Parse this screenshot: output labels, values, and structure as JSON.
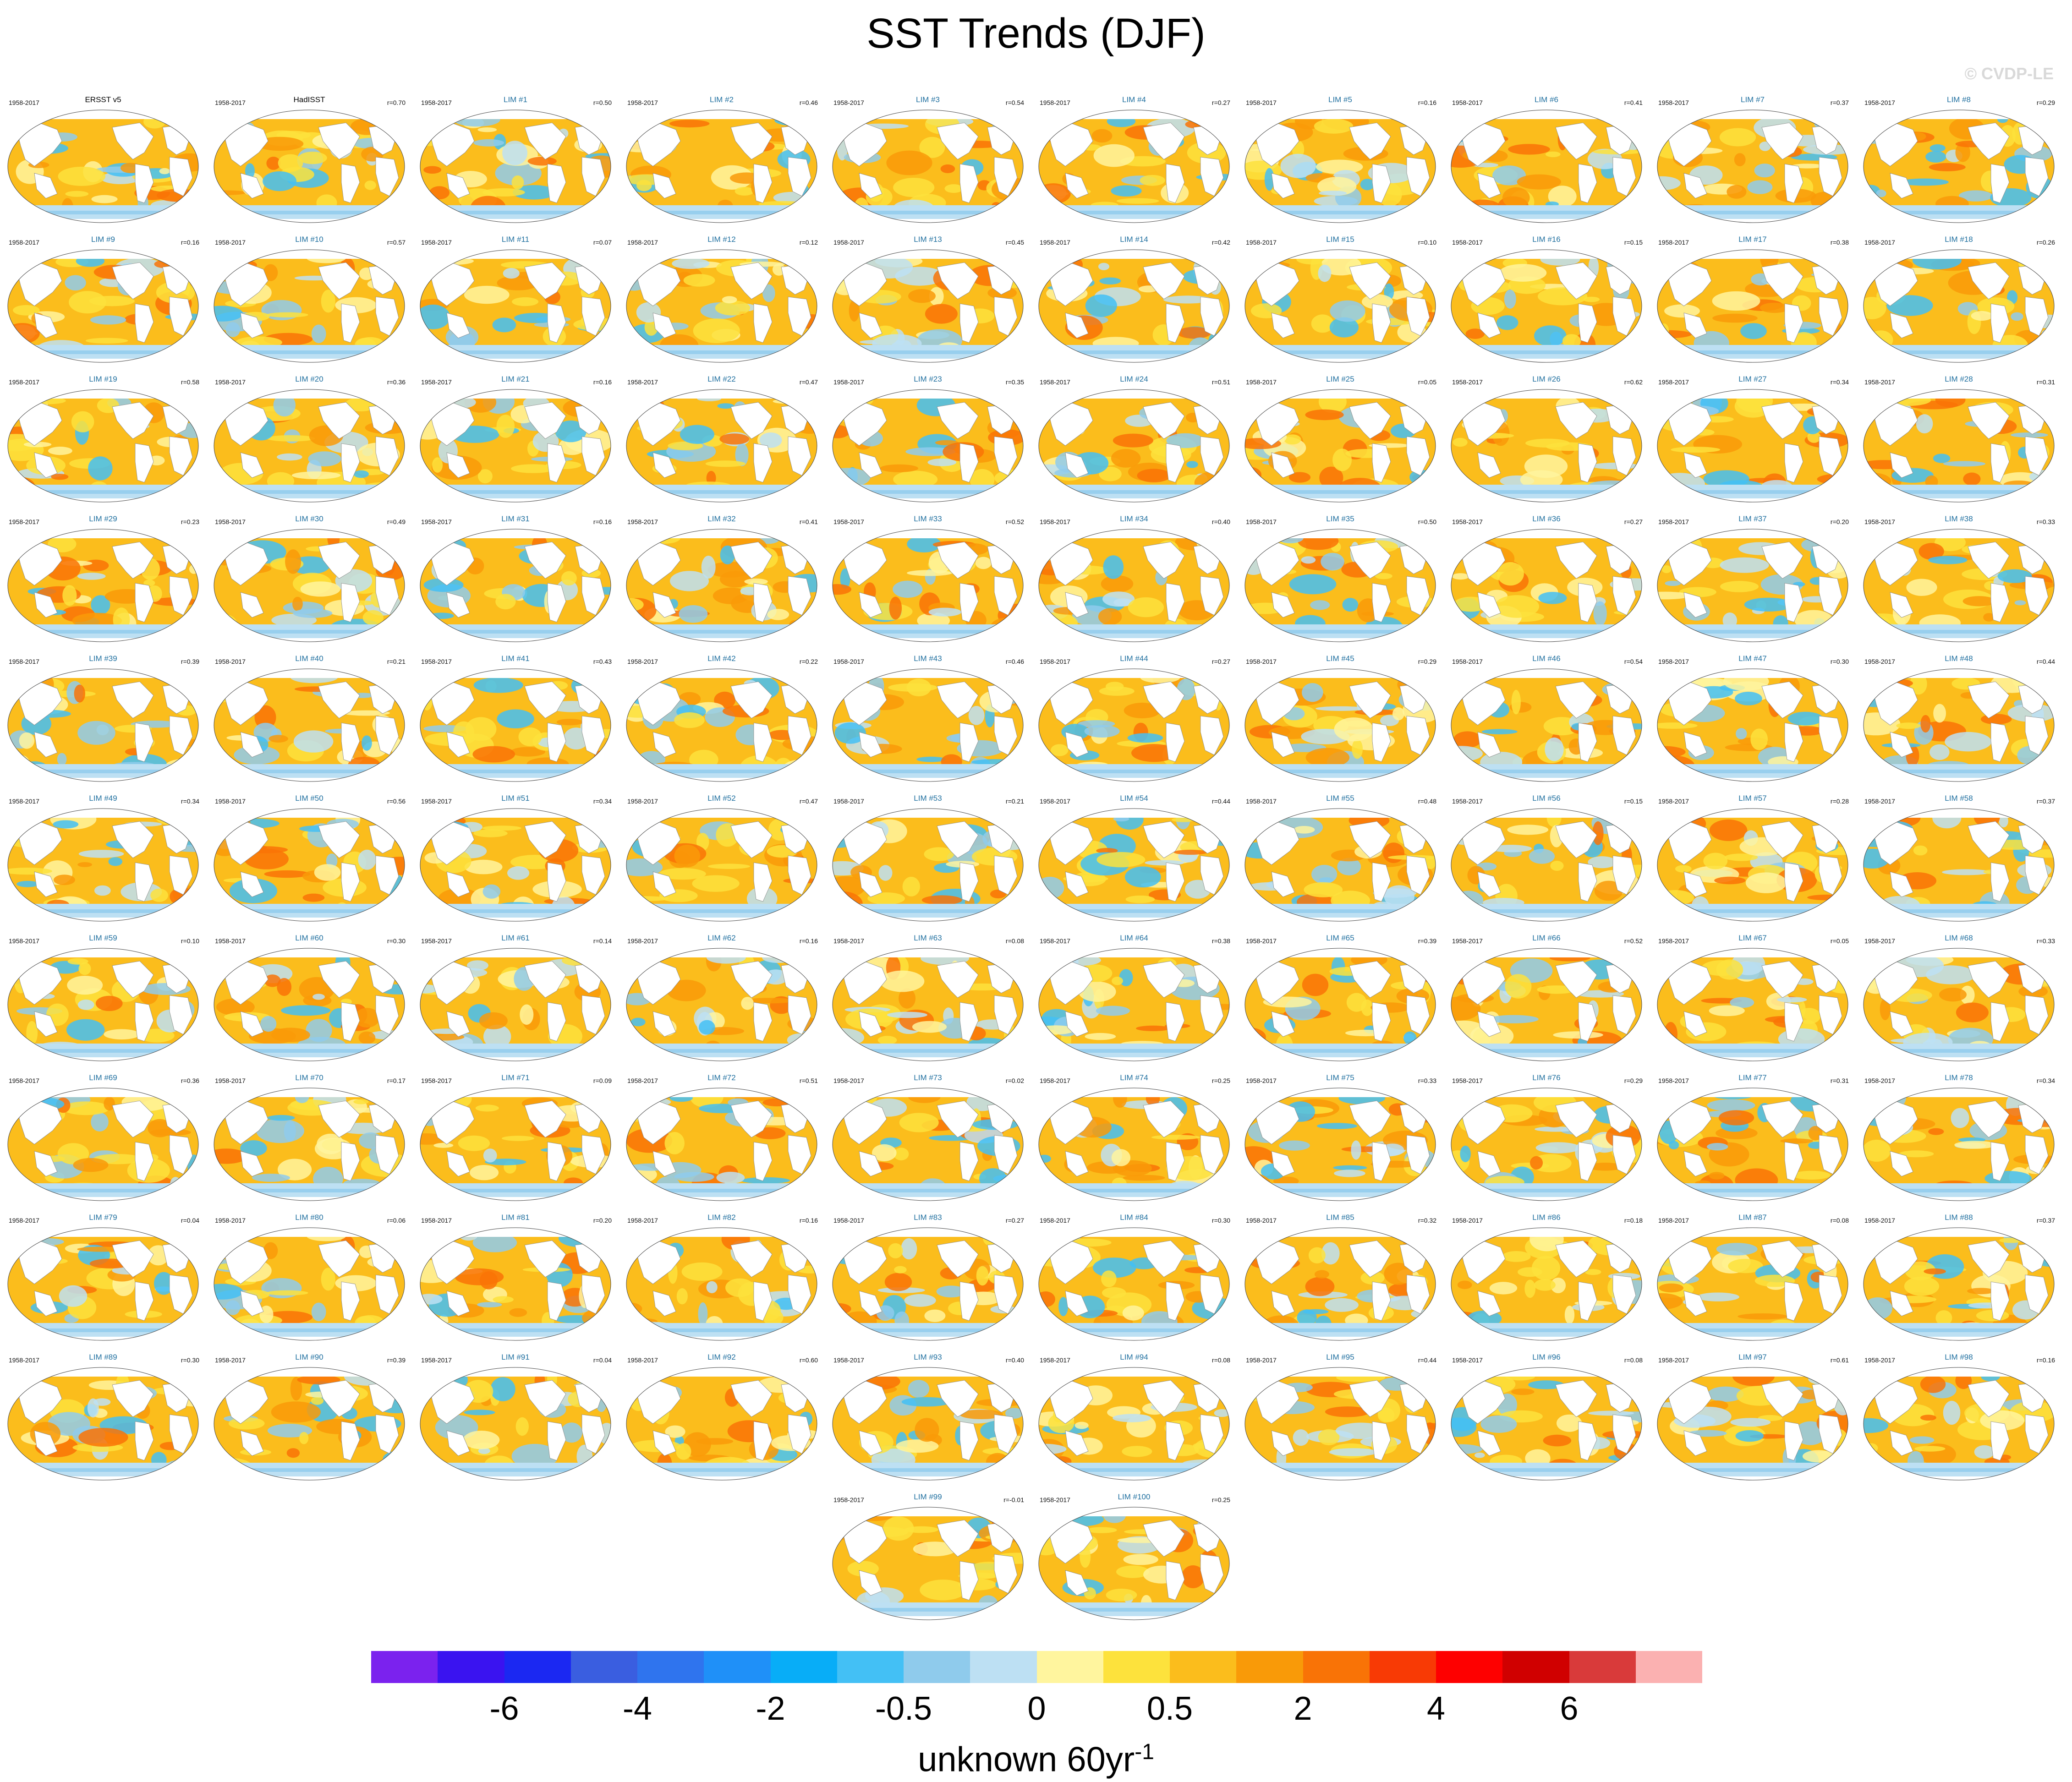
{
  "title": "SST Trends (DJF)",
  "watermark": "© CVDP-LE",
  "period": "1958-2017",
  "panels": [
    {
      "title": "ERSST v5",
      "r": ""
    },
    {
      "title": "HadISST",
      "r": "r=0.70"
    },
    {
      "title": "LIM #1",
      "r": "r=0.50"
    },
    {
      "title": "LIM #2",
      "r": "r=0.46"
    },
    {
      "title": "LIM #3",
      "r": "r=0.54"
    },
    {
      "title": "LIM #4",
      "r": "r=0.27"
    },
    {
      "title": "LIM #5",
      "r": "r=0.16"
    },
    {
      "title": "LIM #6",
      "r": "r=0.41"
    },
    {
      "title": "LIM #7",
      "r": "r=0.37"
    },
    {
      "title": "LIM #8",
      "r": "r=0.29"
    },
    {
      "title": "LIM #9",
      "r": "r=0.16"
    },
    {
      "title": "LIM #10",
      "r": "r=0.57"
    },
    {
      "title": "LIM #11",
      "r": "r=0.07"
    },
    {
      "title": "LIM #12",
      "r": "r=0.12"
    },
    {
      "title": "LIM #13",
      "r": "r=0.45"
    },
    {
      "title": "LIM #14",
      "r": "r=0.42"
    },
    {
      "title": "LIM #15",
      "r": "r=0.10"
    },
    {
      "title": "LIM #16",
      "r": "r=0.15"
    },
    {
      "title": "LIM #17",
      "r": "r=0.38"
    },
    {
      "title": "LIM #18",
      "r": "r=0.26"
    },
    {
      "title": "LIM #19",
      "r": "r=0.58"
    },
    {
      "title": "LIM #20",
      "r": "r=0.36"
    },
    {
      "title": "LIM #21",
      "r": "r=0.16"
    },
    {
      "title": "LIM #22",
      "r": "r=0.47"
    },
    {
      "title": "LIM #23",
      "r": "r=0.35"
    },
    {
      "title": "LIM #24",
      "r": "r=0.51"
    },
    {
      "title": "LIM #25",
      "r": "r=0.05"
    },
    {
      "title": "LIM #26",
      "r": "r=0.62"
    },
    {
      "title": "LIM #27",
      "r": "r=0.34"
    },
    {
      "title": "LIM #28",
      "r": "r=0.31"
    },
    {
      "title": "LIM #29",
      "r": "r=0.23"
    },
    {
      "title": "LIM #30",
      "r": "r=0.49"
    },
    {
      "title": "LIM #31",
      "r": "r=0.16"
    },
    {
      "title": "LIM #32",
      "r": "r=0.41"
    },
    {
      "title": "LIM #33",
      "r": "r=0.52"
    },
    {
      "title": "LIM #34",
      "r": "r=0.40"
    },
    {
      "title": "LIM #35",
      "r": "r=0.50"
    },
    {
      "title": "LIM #36",
      "r": "r=0.27"
    },
    {
      "title": "LIM #37",
      "r": "r=0.20"
    },
    {
      "title": "LIM #38",
      "r": "r=0.33"
    },
    {
      "title": "LIM #39",
      "r": "r=0.39"
    },
    {
      "title": "LIM #40",
      "r": "r=0.21"
    },
    {
      "title": "LIM #41",
      "r": "r=0.43"
    },
    {
      "title": "LIM #42",
      "r": "r=0.22"
    },
    {
      "title": "LIM #43",
      "r": "r=0.46"
    },
    {
      "title": "LIM #44",
      "r": "r=0.27"
    },
    {
      "title": "LIM #45",
      "r": "r=0.29"
    },
    {
      "title": "LIM #46",
      "r": "r=0.54"
    },
    {
      "title": "LIM #47",
      "r": "r=0.30"
    },
    {
      "title": "LIM #48",
      "r": "r=0.44"
    },
    {
      "title": "LIM #49",
      "r": "r=0.34"
    },
    {
      "title": "LIM #50",
      "r": "r=0.56"
    },
    {
      "title": "LIM #51",
      "r": "r=0.34"
    },
    {
      "title": "LIM #52",
      "r": "r=0.47"
    },
    {
      "title": "LIM #53",
      "r": "r=0.21"
    },
    {
      "title": "LIM #54",
      "r": "r=0.44"
    },
    {
      "title": "LIM #55",
      "r": "r=0.48"
    },
    {
      "title": "LIM #56",
      "r": "r=0.15"
    },
    {
      "title": "LIM #57",
      "r": "r=0.28"
    },
    {
      "title": "LIM #58",
      "r": "r=0.37"
    },
    {
      "title": "LIM #59",
      "r": "r=0.10"
    },
    {
      "title": "LIM #60",
      "r": "r=0.30"
    },
    {
      "title": "LIM #61",
      "r": "r=0.14"
    },
    {
      "title": "LIM #62",
      "r": "r=0.16"
    },
    {
      "title": "LIM #63",
      "r": "r=0.08"
    },
    {
      "title": "LIM #64",
      "r": "r=0.38"
    },
    {
      "title": "LIM #65",
      "r": "r=0.39"
    },
    {
      "title": "LIM #66",
      "r": "r=0.52"
    },
    {
      "title": "LIM #67",
      "r": "r=0.05"
    },
    {
      "title": "LIM #68",
      "r": "r=0.33"
    },
    {
      "title": "LIM #69",
      "r": "r=0.36"
    },
    {
      "title": "LIM #70",
      "r": "r=0.17"
    },
    {
      "title": "LIM #71",
      "r": "r=0.09"
    },
    {
      "title": "LIM #72",
      "r": "r=0.51"
    },
    {
      "title": "LIM #73",
      "r": "r=0.02"
    },
    {
      "title": "LIM #74",
      "r": "r=0.25"
    },
    {
      "title": "LIM #75",
      "r": "r=0.33"
    },
    {
      "title": "LIM #76",
      "r": "r=0.29"
    },
    {
      "title": "LIM #77",
      "r": "r=0.31"
    },
    {
      "title": "LIM #78",
      "r": "r=0.34"
    },
    {
      "title": "LIM #79",
      "r": "r=0.04"
    },
    {
      "title": "LIM #80",
      "r": "r=0.06"
    },
    {
      "title": "LIM #81",
      "r": "r=0.20"
    },
    {
      "title": "LIM #82",
      "r": "r=0.16"
    },
    {
      "title": "LIM #83",
      "r": "r=0.27"
    },
    {
      "title": "LIM #84",
      "r": "r=0.30"
    },
    {
      "title": "LIM #85",
      "r": "r=0.32"
    },
    {
      "title": "LIM #86",
      "r": "r=0.18"
    },
    {
      "title": "LIM #87",
      "r": "r=0.08"
    },
    {
      "title": "LIM #88",
      "r": "r=0.37"
    },
    {
      "title": "LIM #89",
      "r": "r=0.30"
    },
    {
      "title": "LIM #90",
      "r": "r=0.39"
    },
    {
      "title": "LIM #91",
      "r": "r=0.04"
    },
    {
      "title": "LIM #92",
      "r": "r=0.60"
    },
    {
      "title": "LIM #93",
      "r": "r=0.40"
    },
    {
      "title": "LIM #94",
      "r": "r=0.08"
    },
    {
      "title": "LIM #95",
      "r": "r=0.44"
    },
    {
      "title": "LIM #96",
      "r": "r=0.08"
    },
    {
      "title": "LIM #97",
      "r": "r=0.61"
    },
    {
      "title": "LIM #98",
      "r": "r=0.16"
    },
    {
      "title": "LIM #99",
      "r": "r=-0.01"
    },
    {
      "title": "LIM #100",
      "r": "r=0.25"
    }
  ],
  "colorbar": {
    "colors": [
      "#7b22ee",
      "#3a13f0",
      "#1b28f2",
      "#3a5ee0",
      "#2f74ee",
      "#1f90f8",
      "#08adf7",
      "#43c0f5",
      "#8fcbec",
      "#bde0f3",
      "#fff59e",
      "#fde23c",
      "#fbbd1c",
      "#f99a08",
      "#f97306",
      "#f83a05",
      "#fe0000",
      "#d00000",
      "#d93a3a",
      "#fbb1b1"
    ],
    "labels": [
      "-6",
      "-4",
      "-2",
      "-0.5",
      "0",
      "0.5",
      "2",
      "4",
      "6"
    ],
    "units": "unknown 60yr",
    "units_exp": "-1"
  }
}
